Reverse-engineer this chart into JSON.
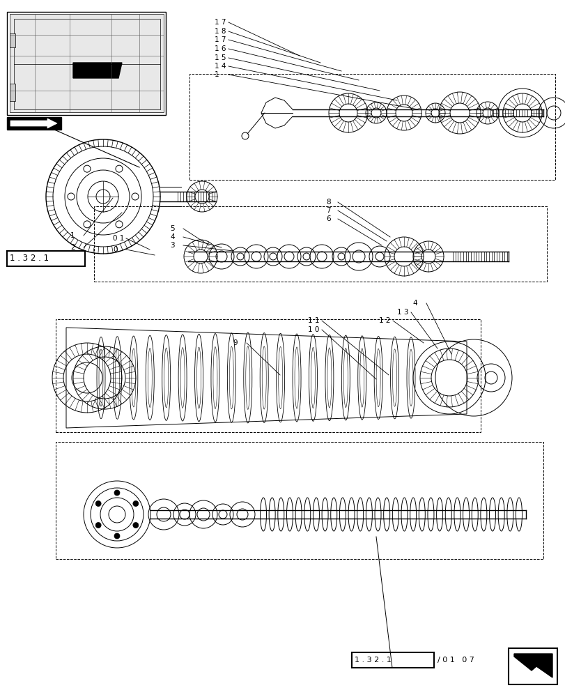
{
  "bg_color": "#ffffff",
  "line_color": "#000000",
  "fig_width": 8.12,
  "fig_height": 10.0,
  "dpi": 100,
  "ref_box_bottom_text": "1 . 3 2 . 1 / 0 1   0 7",
  "ref_box_top_text": "1 . 3 2 . 1",
  "part_numbers_top": [
    "1 4",
    "1 5",
    "1 6",
    "1 7",
    "1 8",
    "1 7"
  ],
  "part_numbers_mid": [
    "1",
    "2",
    "0 1",
    "0",
    "3",
    "4",
    "5",
    "6",
    "7",
    "8"
  ],
  "part_numbers_bot": [
    "9",
    "1 0",
    "1 1",
    "1 2",
    "1 3",
    "4"
  ]
}
